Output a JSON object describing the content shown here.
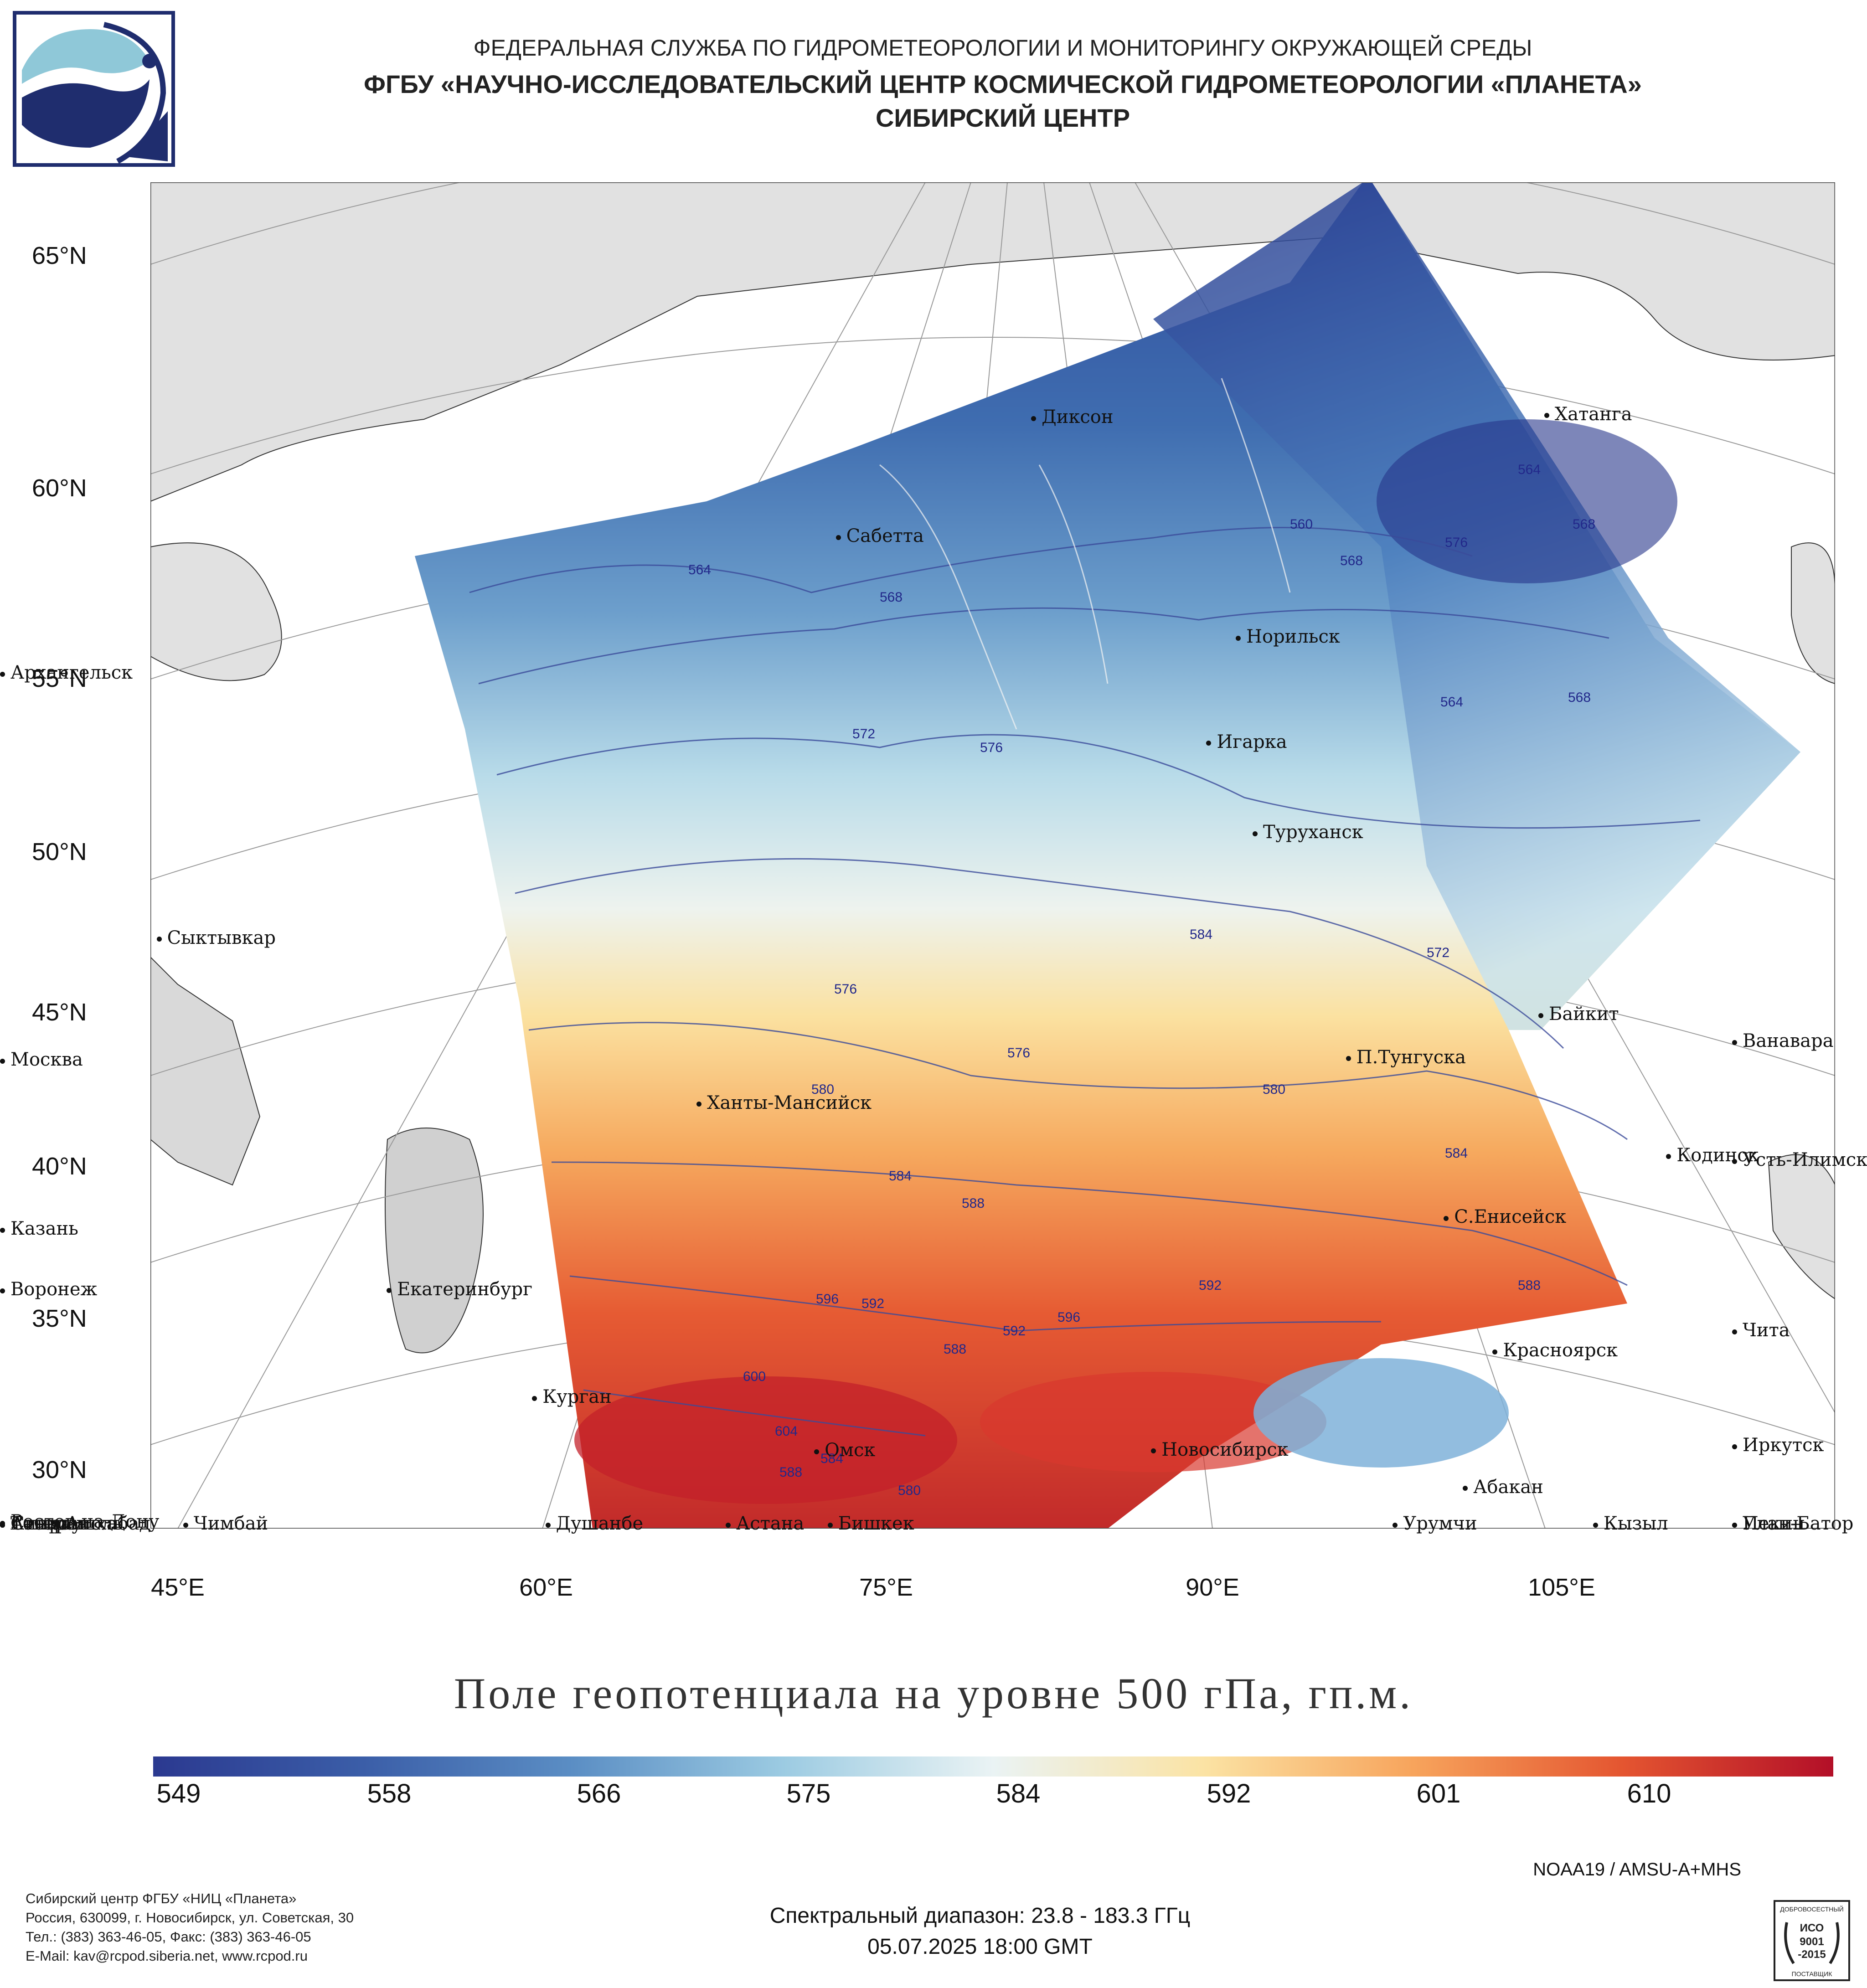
{
  "header": {
    "line1": "ФЕДЕРАЛЬНАЯ СЛУЖБА ПО ГИДРОМЕТЕОРОЛОГИИ И МОНИТОРИНГУ ОКРУЖАЮЩЕЙ СРЕДЫ",
    "line2": "ФГБУ «НАУЧНО-ИССЛЕДОВАТЕЛЬСКИЙ ЦЕНТР КОСМИЧЕСКОЙ ГИДРОМЕТЕОРОЛОГИИ «ПЛАНЕТА»",
    "line3": "СИБИРСКИЙ ЦЕНТР"
  },
  "map": {
    "lat_labels": [
      "65°N",
      "60°N",
      "55°N",
      "50°N",
      "45°N",
      "40°N",
      "35°N",
      "30°N"
    ],
    "lon_labels": [
      "45°E",
      "60°E",
      "75°E",
      "90°E",
      "105°E"
    ],
    "cities": [
      {
        "name": "Диксон",
        "lon": 80.4,
        "lat": 73.5
      },
      {
        "name": "Хатанга",
        "lon": 102.5,
        "lat": 72.0
      },
      {
        "name": "Сабетта",
        "lon": 72.1,
        "lat": 71.3
      },
      {
        "name": "Норильск",
        "lon": 88.2,
        "lat": 69.3
      },
      {
        "name": "Архангельск",
        "lon": 40.5,
        "lat": 64.5
      },
      {
        "name": "Игарка",
        "lon": 86.6,
        "lat": 67.5
      },
      {
        "name": "Туруханск",
        "lon": 87.9,
        "lat": 65.8
      },
      {
        "name": "Сыктывкар",
        "lon": 50.8,
        "lat": 61.7
      },
      {
        "name": "Байкит",
        "lon": 96.4,
        "lat": 61.7
      },
      {
        "name": "П.Тунгуска",
        "lon": 90.0,
        "lat": 61.6
      },
      {
        "name": "Ванавара",
        "lon": 102.3,
        "lat": 60.3
      },
      {
        "name": "Москва",
        "lon": 37.6,
        "lat": 55.8
      },
      {
        "name": "Ханты-Мансийск",
        "lon": 69.0,
        "lat": 61.0
      },
      {
        "name": "С.Енисейск",
        "lon": 92.2,
        "lat": 58.5
      },
      {
        "name": "Кодинск",
        "lon": 99.2,
        "lat": 58.7
      },
      {
        "name": "Усть-Илимск",
        "lon": 102.7,
        "lat": 58.0
      },
      {
        "name": "Казань",
        "lon": 49.1,
        "lat": 55.8
      },
      {
        "name": "Екатеринбург",
        "lon": 60.6,
        "lat": 56.8
      },
      {
        "name": "Воронеж",
        "lon": 39.2,
        "lat": 51.7
      },
      {
        "name": "Курган",
        "lon": 65.3,
        "lat": 55.4
      },
      {
        "name": "Красноярск",
        "lon": 92.9,
        "lat": 56.0
      },
      {
        "name": "Чита",
        "lon": 113.5,
        "lat": 52.0
      },
      {
        "name": "Омск",
        "lon": 73.4,
        "lat": 55.0
      },
      {
        "name": "Новосибирск",
        "lon": 82.9,
        "lat": 55.0
      },
      {
        "name": "Ростов-на-Дону",
        "lon": 39.7,
        "lat": 47.2
      },
      {
        "name": "Абакан",
        "lon": 91.4,
        "lat": 53.7
      },
      {
        "name": "Иркутск",
        "lon": 104.3,
        "lat": 52.3
      },
      {
        "name": "Кызыл",
        "lon": 94.4,
        "lat": 51.7
      },
      {
        "name": "Ставрополь",
        "lon": 42.0,
        "lat": 45.0
      },
      {
        "name": "Астана",
        "lon": 71.4,
        "lat": 51.2
      },
      {
        "name": "Атырау",
        "lon": 51.9,
        "lat": 47.1
      },
      {
        "name": "Улан-Батор",
        "lon": 106.9,
        "lat": 47.9
      },
      {
        "name": "Сивас",
        "lon": 37.0,
        "lat": 39.7
      },
      {
        "name": "Пекин",
        "lon": 116.4,
        "lat": 39.9
      },
      {
        "name": "Чимбай",
        "lon": 59.8,
        "lat": 42.9
      },
      {
        "name": "Урумчи",
        "lon": 87.6,
        "lat": 43.8
      },
      {
        "name": "Бишкек",
        "lon": 74.6,
        "lat": 42.9
      },
      {
        "name": "Ашхабад",
        "lon": 58.4,
        "lat": 37.9
      },
      {
        "name": "Тегеран",
        "lon": 51.4,
        "lat": 35.7
      },
      {
        "name": "Душанбе",
        "lon": 68.8,
        "lat": 38.6
      }
    ],
    "contour_labels": [
      "564",
      "568",
      "572",
      "576",
      "560",
      "564",
      "568",
      "576",
      "568",
      "564",
      "568",
      "572",
      "584",
      "576",
      "576",
      "580",
      "580",
      "584",
      "584",
      "588",
      "588",
      "592",
      "596",
      "592",
      "596",
      "592",
      "588",
      "600",
      "604",
      "588",
      "584",
      "580"
    ]
  },
  "title": "Поле геопотенциала на уровне 500 гПа, гп.м.",
  "colorbar": {
    "labels": [
      "549",
      "558",
      "566",
      "575",
      "584",
      "592",
      "601",
      "610"
    ],
    "colors": [
      "#2b3990",
      "#3b5ea8",
      "#5b8ec4",
      "#9ccbe2",
      "#eaf3f4",
      "#fbe3a4",
      "#f7a45c",
      "#e45530",
      "#b30f28"
    ]
  },
  "footer": {
    "satellite": "NOAA19 / AMSU-A+MHS",
    "spectral": "Спектральный диапазон: 23.8 - 183.3 ГГц",
    "datetime": "05.07.2025 18:00 GMT",
    "org1": "Сибирский центр ФГБУ «НИЦ «Планета»",
    "org2": "Россия, 630099, г. Новосибирск, ул. Советская, 30",
    "org3": "Тел.: (383) 363-46-05, Факс: (383) 363-46-05",
    "org4": "E-Mail: kav@rcpod.siberia.net, www.rcpod.ru",
    "iso_top": "ДОБРОВОСЕСТНЫЙ",
    "iso_mid1": "ИСО",
    "iso_mid2": "9001",
    "iso_mid3": "-2015",
    "iso_bottom": "ПОСТАВЩИК"
  }
}
